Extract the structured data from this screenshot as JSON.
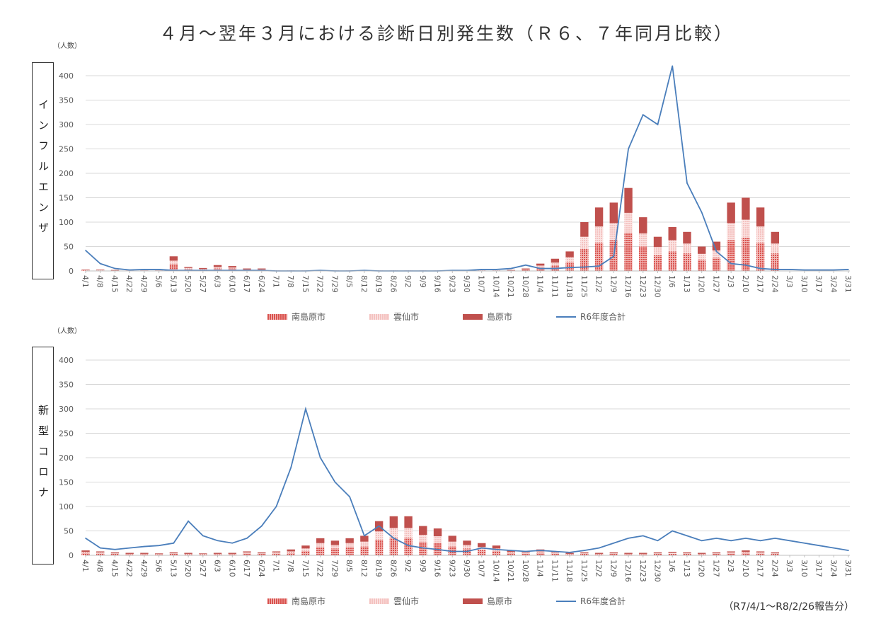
{
  "title": "４月～翌年３月における診断日別発生数（Ｒ６、７年同月比較）",
  "footnote": "（R7/4/1～R8/2/26報告分）",
  "colors": {
    "minamishimabara": "#d9534f",
    "unzen": "#f4c2c0",
    "shimabara": "#c0504d",
    "r6_total": "#4a7ebb"
  },
  "chart_data": [
    {
      "type": "bar+line",
      "panel_label": "インフルエンザ",
      "ylabel": "（人数）",
      "ylim": [
        0,
        400
      ],
      "yticks": [
        0,
        50,
        100,
        150,
        200,
        250,
        300,
        350,
        400
      ],
      "grid": true,
      "legend_position": "bottom",
      "categories": [
        "4/1",
        "4/8",
        "4/15",
        "4/22",
        "4/29",
        "5/6",
        "5/13",
        "5/20",
        "5/27",
        "6/3",
        "6/10",
        "6/17",
        "6/24",
        "7/1",
        "7/8",
        "7/15",
        "7/22",
        "7/29",
        "8/5",
        "8/12",
        "8/19",
        "8/26",
        "9/2",
        "9/9",
        "9/16",
        "9/23",
        "9/30",
        "10/7",
        "10/14",
        "10/21",
        "10/28",
        "11/4",
        "11/11",
        "11/18",
        "11/25",
        "12/2",
        "12/9",
        "12/16",
        "12/23",
        "12/30",
        "1/6",
        "1/13",
        "1/20",
        "1/27",
        "2/3",
        "2/10",
        "2/17",
        "2/24",
        "3/3",
        "3/10",
        "3/17",
        "3/24",
        "3/31"
      ],
      "series": [
        {
          "name": "南島原市",
          "kind": "bar",
          "values": [
            1,
            1,
            1,
            0,
            0,
            0,
            14,
            4,
            3,
            5,
            5,
            2,
            2,
            1,
            1,
            1,
            1,
            1,
            1,
            1,
            1,
            1,
            1,
            1,
            1,
            1,
            1,
            1,
            1,
            1,
            2,
            7,
            11,
            18,
            45,
            58,
            63,
            77,
            50,
            32,
            40,
            36,
            23,
            27,
            63,
            68,
            58,
            36,
            null,
            null,
            null,
            null,
            null
          ]
        },
        {
          "name": "雲仙市",
          "kind": "bar",
          "values": [
            1,
            1,
            0,
            0,
            0,
            0,
            7,
            2,
            1,
            3,
            2,
            1,
            1,
            0,
            0,
            0,
            0,
            0,
            0,
            0,
            0,
            0,
            0,
            0,
            0,
            0,
            0,
            0,
            0,
            0,
            1,
            4,
            6,
            10,
            25,
            33,
            35,
            42,
            27,
            17,
            23,
            20,
            12,
            15,
            35,
            37,
            33,
            20,
            null,
            null,
            null,
            null,
            null
          ]
        },
        {
          "name": "島原市",
          "kind": "bar",
          "values": [
            1,
            1,
            1,
            1,
            1,
            1,
            9,
            2,
            2,
            4,
            3,
            2,
            2,
            0,
            0,
            0,
            0,
            0,
            0,
            0,
            0,
            0,
            0,
            0,
            0,
            0,
            0,
            0,
            0,
            1,
            2,
            4,
            8,
            12,
            30,
            39,
            42,
            51,
            33,
            21,
            27,
            24,
            15,
            18,
            42,
            45,
            39,
            24,
            null,
            null,
            null,
            null,
            null
          ]
        },
        {
          "name": "R6年度合計",
          "kind": "line",
          "values": [
            42,
            15,
            5,
            2,
            3,
            3,
            1,
            1,
            1,
            1,
            1,
            1,
            1,
            0,
            0,
            0,
            1,
            0,
            0,
            1,
            0,
            0,
            0,
            0,
            0,
            1,
            1,
            3,
            3,
            5,
            12,
            5,
            5,
            7,
            8,
            10,
            30,
            250,
            320,
            300,
            420,
            180,
            120,
            40,
            15,
            12,
            5,
            3,
            3,
            2,
            2,
            2,
            3
          ]
        }
      ]
    },
    {
      "type": "bar+line",
      "panel_label": "新型コロナ",
      "ylabel": "（人数）",
      "ylim": [
        0,
        400
      ],
      "yticks": [
        0,
        50,
        100,
        150,
        200,
        250,
        300,
        350,
        400
      ],
      "grid": true,
      "legend_position": "bottom",
      "categories": [
        "4/1",
        "4/8",
        "4/15",
        "4/22",
        "4/29",
        "5/6",
        "5/13",
        "5/20",
        "5/27",
        "6/3",
        "6/10",
        "6/17",
        "6/24",
        "7/1",
        "7/8",
        "7/15",
        "7/22",
        "7/29",
        "8/5",
        "8/12",
        "8/19",
        "8/26",
        "9/2",
        "9/9",
        "9/16",
        "9/23",
        "9/30",
        "10/7",
        "10/14",
        "10/21",
        "10/28",
        "11/4",
        "11/11",
        "11/18",
        "11/25",
        "12/2",
        "12/9",
        "12/16",
        "12/23",
        "12/30",
        "1/6",
        "1/13",
        "1/20",
        "1/27",
        "2/3",
        "2/10",
        "2/17",
        "2/24",
        "3/3",
        "3/10",
        "3/17",
        "3/24",
        "3/31"
      ],
      "series": [
        {
          "name": "南島原市",
          "kind": "bar",
          "values": [
            5,
            4,
            3,
            2,
            2,
            2,
            3,
            2,
            2,
            2,
            2,
            4,
            3,
            4,
            5,
            9,
            16,
            14,
            16,
            18,
            32,
            36,
            36,
            27,
            25,
            18,
            14,
            11,
            9,
            5,
            4,
            5,
            4,
            2,
            3,
            2,
            3,
            2,
            2,
            3,
            3,
            3,
            2,
            3,
            4,
            5,
            4,
            3,
            null,
            null,
            null,
            null,
            null
          ]
        },
        {
          "name": "雲仙市",
          "kind": "bar",
          "values": [
            2,
            2,
            1,
            1,
            1,
            1,
            1,
            1,
            1,
            1,
            1,
            2,
            1,
            2,
            3,
            5,
            9,
            7,
            9,
            10,
            17,
            20,
            20,
            15,
            14,
            10,
            7,
            6,
            5,
            2,
            2,
            3,
            2,
            1,
            1,
            1,
            1,
            1,
            1,
            1,
            2,
            1,
            1,
            1,
            2,
            2,
            2,
            1,
            null,
            null,
            null,
            null,
            null
          ]
        },
        {
          "name": "島原市",
          "kind": "bar",
          "values": [
            3,
            2,
            2,
            2,
            2,
            1,
            2,
            2,
            1,
            2,
            2,
            2,
            2,
            2,
            4,
            6,
            10,
            9,
            10,
            12,
            21,
            24,
            24,
            18,
            16,
            12,
            9,
            8,
            6,
            3,
            2,
            4,
            2,
            2,
            2,
            2,
            2,
            2,
            2,
            2,
            2,
            2,
            2,
            2,
            2,
            3,
            2,
            2,
            null,
            null,
            null,
            null,
            null
          ]
        },
        {
          "name": "R6年度合計",
          "kind": "line",
          "values": [
            35,
            15,
            12,
            15,
            18,
            20,
            25,
            70,
            40,
            30,
            25,
            35,
            60,
            100,
            180,
            300,
            200,
            150,
            120,
            40,
            60,
            35,
            20,
            15,
            12,
            8,
            8,
            15,
            12,
            10,
            8,
            10,
            8,
            6,
            10,
            15,
            25,
            35,
            40,
            30,
            50,
            40,
            30,
            35,
            30,
            35,
            30,
            35,
            30,
            25,
            20,
            15,
            10
          ]
        }
      ]
    }
  ]
}
